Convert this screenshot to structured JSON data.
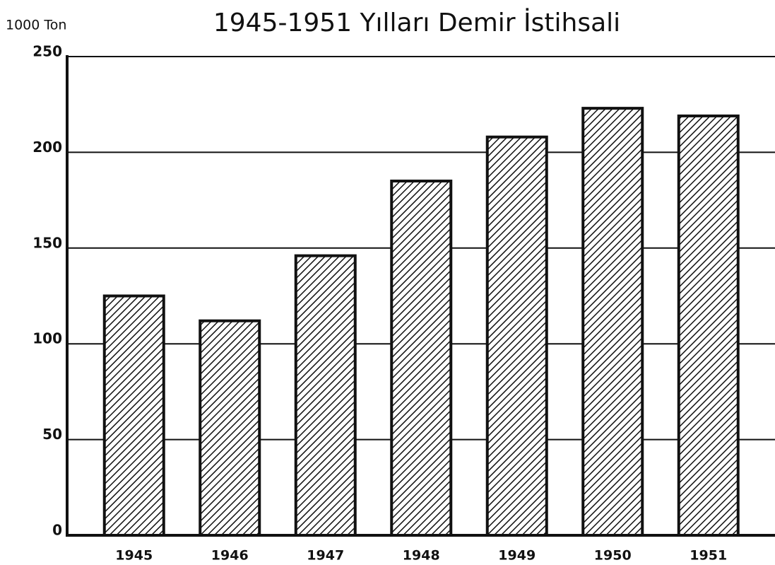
{
  "chart_data": {
    "type": "bar",
    "title": "1945-1951 Yılları Demir İstihsali",
    "y_label": "1000 Ton",
    "categories": [
      "1945",
      "1946",
      "1947",
      "1948",
      "1949",
      "1950",
      "1951"
    ],
    "values": [
      125,
      112,
      146,
      185,
      208,
      223,
      219
    ],
    "color": "#111111",
    "ylim": [
      0,
      250
    ],
    "yticks": [
      0,
      50,
      100,
      150,
      200,
      250
    ],
    "grid": true
  }
}
